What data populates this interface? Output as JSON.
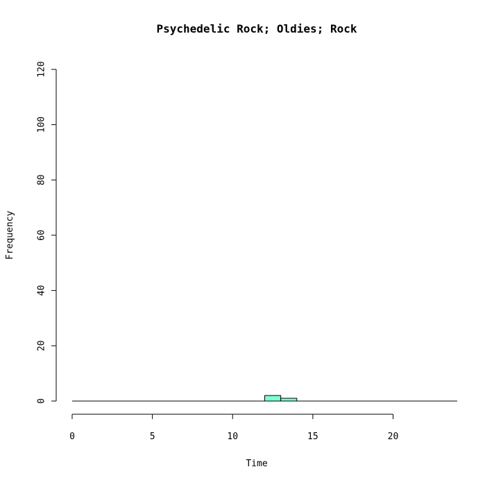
{
  "chart_data": {
    "type": "bar",
    "title": "Psychedelic Rock; Oldies; Rock",
    "xlabel": "Time",
    "ylabel": "Frequency",
    "xlim": [
      0,
      24
    ],
    "ylim": [
      0,
      120
    ],
    "x_ticks": [
      0,
      5,
      10,
      15,
      20
    ],
    "y_ticks": [
      0,
      20,
      40,
      60,
      80,
      100,
      120
    ],
    "bin_width": 1,
    "bins": [
      {
        "start": 12,
        "end": 13,
        "count": 2
      },
      {
        "start": 13,
        "end": 14,
        "count": 1
      }
    ],
    "bar_color": "#7FFFD4",
    "grid": false,
    "legend": "none"
  }
}
